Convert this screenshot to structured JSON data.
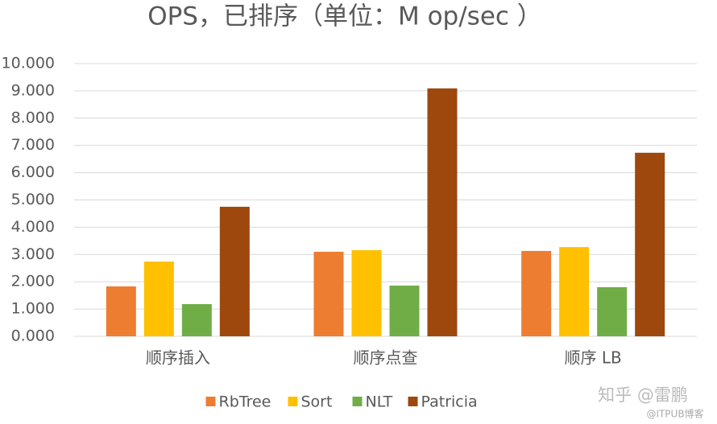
{
  "chart_data": {
    "type": "bar",
    "title": "OPS，已排序（单位：M op/sec ）",
    "categories": [
      "顺序插入",
      "顺序点查",
      "顺序 LB"
    ],
    "series": [
      {
        "name": "RbTree",
        "color": "#ed7d31",
        "values": [
          1.83,
          3.1,
          3.13
        ]
      },
      {
        "name": "Sort",
        "color": "#ffc000",
        "values": [
          2.74,
          3.16,
          3.27
        ]
      },
      {
        "name": "NLT",
        "color": "#70ad47",
        "values": [
          1.18,
          1.86,
          1.8
        ]
      },
      {
        "name": "Patricia",
        "color": "#9e480e",
        "values": [
          4.75,
          9.09,
          6.73
        ]
      }
    ],
    "ylim": [
      0,
      10
    ],
    "yticks": [
      {
        "value": 0,
        "label": "0.000"
      },
      {
        "value": 1,
        "label": "1.000"
      },
      {
        "value": 2,
        "label": "2.000"
      },
      {
        "value": 3,
        "label": "3.000"
      },
      {
        "value": 4,
        "label": "4.000"
      },
      {
        "value": 5,
        "label": "5.000"
      },
      {
        "value": 6,
        "label": "6.000"
      },
      {
        "value": 7,
        "label": "7.000"
      },
      {
        "value": 8,
        "label": "8.000"
      },
      {
        "value": 9,
        "label": "9.000"
      },
      {
        "value": 10,
        "label": "10.000"
      }
    ],
    "grid": true,
    "legend": "bottom",
    "watermarks": [
      "知乎 @雷鹏",
      "@ITPUB博客"
    ]
  }
}
